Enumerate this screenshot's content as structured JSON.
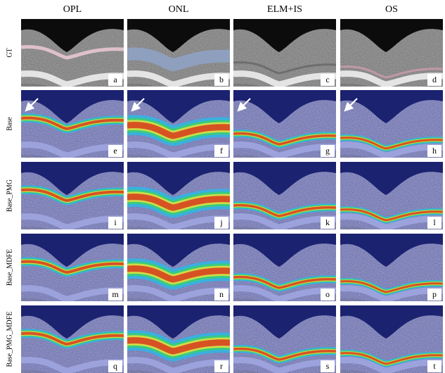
{
  "columns": [
    "OPL",
    "ONL",
    "ELM+IS",
    "OS"
  ],
  "rows": [
    {
      "label": "GT",
      "panels": [
        "a",
        "b",
        "c",
        "d"
      ]
    },
    {
      "label": "Base",
      "panels": [
        "e",
        "f",
        "g",
        "h"
      ]
    },
    {
      "label": "Base_PMG",
      "panels": [
        "i",
        "j",
        "k",
        "l"
      ]
    },
    {
      "label": "Base_MDFE",
      "panels": [
        "m",
        "n",
        "o",
        "p"
      ]
    },
    {
      "label": "Base_PMG_MDFE",
      "panels": [
        "q",
        "r",
        "s",
        "t"
      ]
    }
  ]
}
